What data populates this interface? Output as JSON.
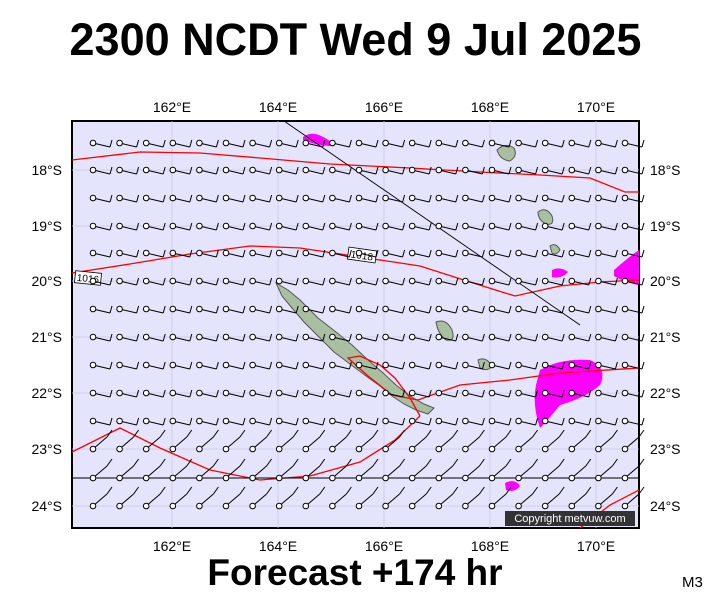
{
  "title": "2300 NCDT Wed 9 Jul 2025",
  "footer": "Forecast +174 hr",
  "code": "M3",
  "copyright": "Copyright metvuw.com",
  "lon_labels": [
    "162°E",
    "164°E",
    "166°E",
    "168°E",
    "170°E"
  ],
  "lat_labels": [
    "18°S",
    "19°S",
    "20°S",
    "21°S",
    "22°S",
    "23°S",
    "24°S"
  ],
  "isobar_labels": [
    "1016",
    "1018"
  ],
  "colors": {
    "map_background": "#e4e4fc",
    "isobar": "#ff0000",
    "precip": "#ff00ff",
    "land": "#9fb79f"
  }
}
